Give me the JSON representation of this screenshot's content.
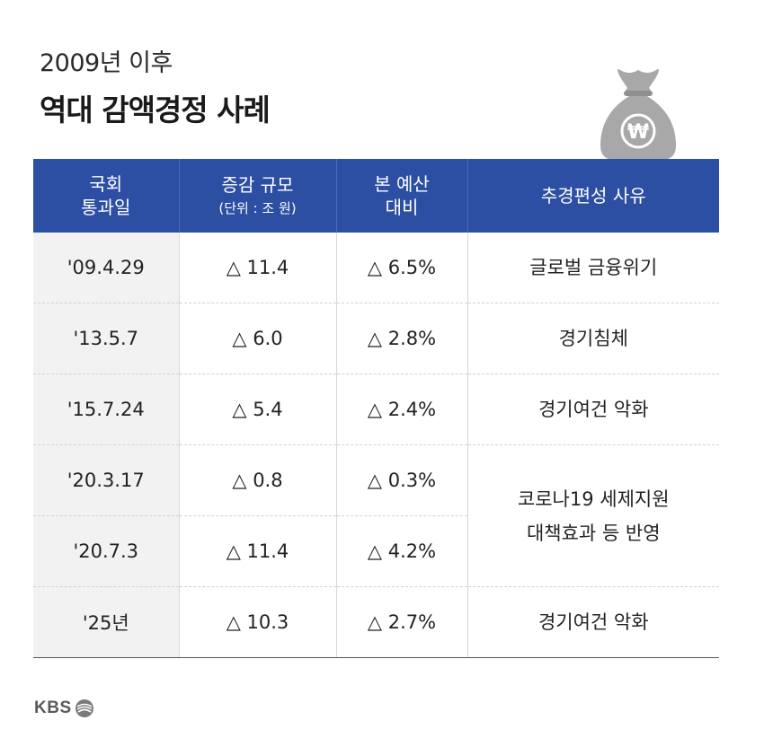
{
  "header": {
    "subtitle": "2009년 이후",
    "title": "역대 감액경정 사례"
  },
  "icon": {
    "moneybag": "won-money-bag-icon",
    "symbol": "₩"
  },
  "table": {
    "headers": {
      "date": "국회\n통과일",
      "change": "증감 규모",
      "change_unit": "(단위 : 조 원)",
      "ratio": "본 예산\n대비",
      "reason": "추경편성 사유"
    },
    "rows": [
      {
        "date": "'09.4.29",
        "change": "△ 11.4",
        "ratio": "△ 6.5%",
        "reason": "글로벌 금융위기"
      },
      {
        "date": "'13.5.7",
        "change": "△ 6.0",
        "ratio": "△ 2.8%",
        "reason": "경기침체"
      },
      {
        "date": "'15.7.24",
        "change": "△ 5.4",
        "ratio": "△ 2.4%",
        "reason": "경기여건 악화"
      },
      {
        "date": "'20.3.17",
        "change": "△ 0.8",
        "ratio": "△ 0.3%",
        "reason": "코로나19 세제지원\n대책효과 등 반영"
      },
      {
        "date": "'20.7.3",
        "change": "△ 11.4",
        "ratio": "△ 4.2%"
      },
      {
        "date": "'25년",
        "change": "△ 10.3",
        "ratio": "△ 2.7%",
        "reason": "경기여건 악화"
      }
    ]
  },
  "footer": {
    "brand": "KBS"
  },
  "colors": {
    "header_bg": "#2c4ea3",
    "date_col_bg": "#f2f2f2",
    "bag": "#a7a7a7"
  }
}
